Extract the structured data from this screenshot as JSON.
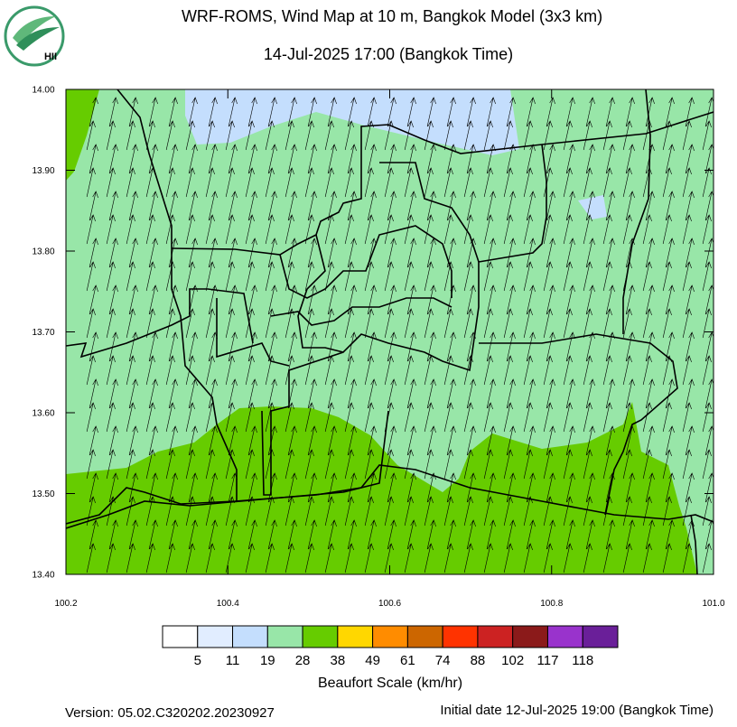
{
  "header": {
    "title": "WRF-ROMS, Wind Map at 10 m, Bangkok Model (3x3 km)",
    "subtitle": "14-Jul-2025 17:00 (Bangkok Time)"
  },
  "logo": {
    "text": "HII"
  },
  "map": {
    "xlim": [
      100.2,
      101.0
    ],
    "ylim": [
      13.4,
      14.0
    ],
    "xticks": [
      100.2,
      100.4,
      100.6,
      100.8,
      {
        "value": 101.0,
        "label": "101.0"
      }
    ],
    "yticks": [
      {
        "value": 13.4,
        "label": "13.40"
      },
      {
        "value": 13.5,
        "label": "13.50"
      },
      {
        "value": 13.6,
        "label": "13.60"
      },
      {
        "value": 13.7,
        "label": "13.70"
      },
      {
        "value": 13.8,
        "label": "13.80"
      },
      {
        "value": 13.9,
        "label": "13.90"
      },
      {
        "value": 14.0,
        "label": "14.00"
      }
    ]
  },
  "colorbar": {
    "colors": [
      "#ffffff",
      "#e1edff",
      "#c4defd",
      "#98e6a8",
      "#66cc00",
      "#ffd700",
      "#ff8c00",
      "#cc6600",
      "#ff3300",
      "#cc2222",
      "#8b1a1a",
      "#9933cc",
      "#6a1f99"
    ],
    "boundaries": [
      5,
      11,
      19,
      28,
      38,
      49,
      61,
      74,
      88,
      102,
      117,
      118
    ],
    "title": "Beaufort Scale (km/hr)"
  },
  "footer": {
    "version": "Version: 05.02.C320202.20230927",
    "initial": "Initial date 12-Jul-2025 19:00 (Bangkok Time)"
  }
}
